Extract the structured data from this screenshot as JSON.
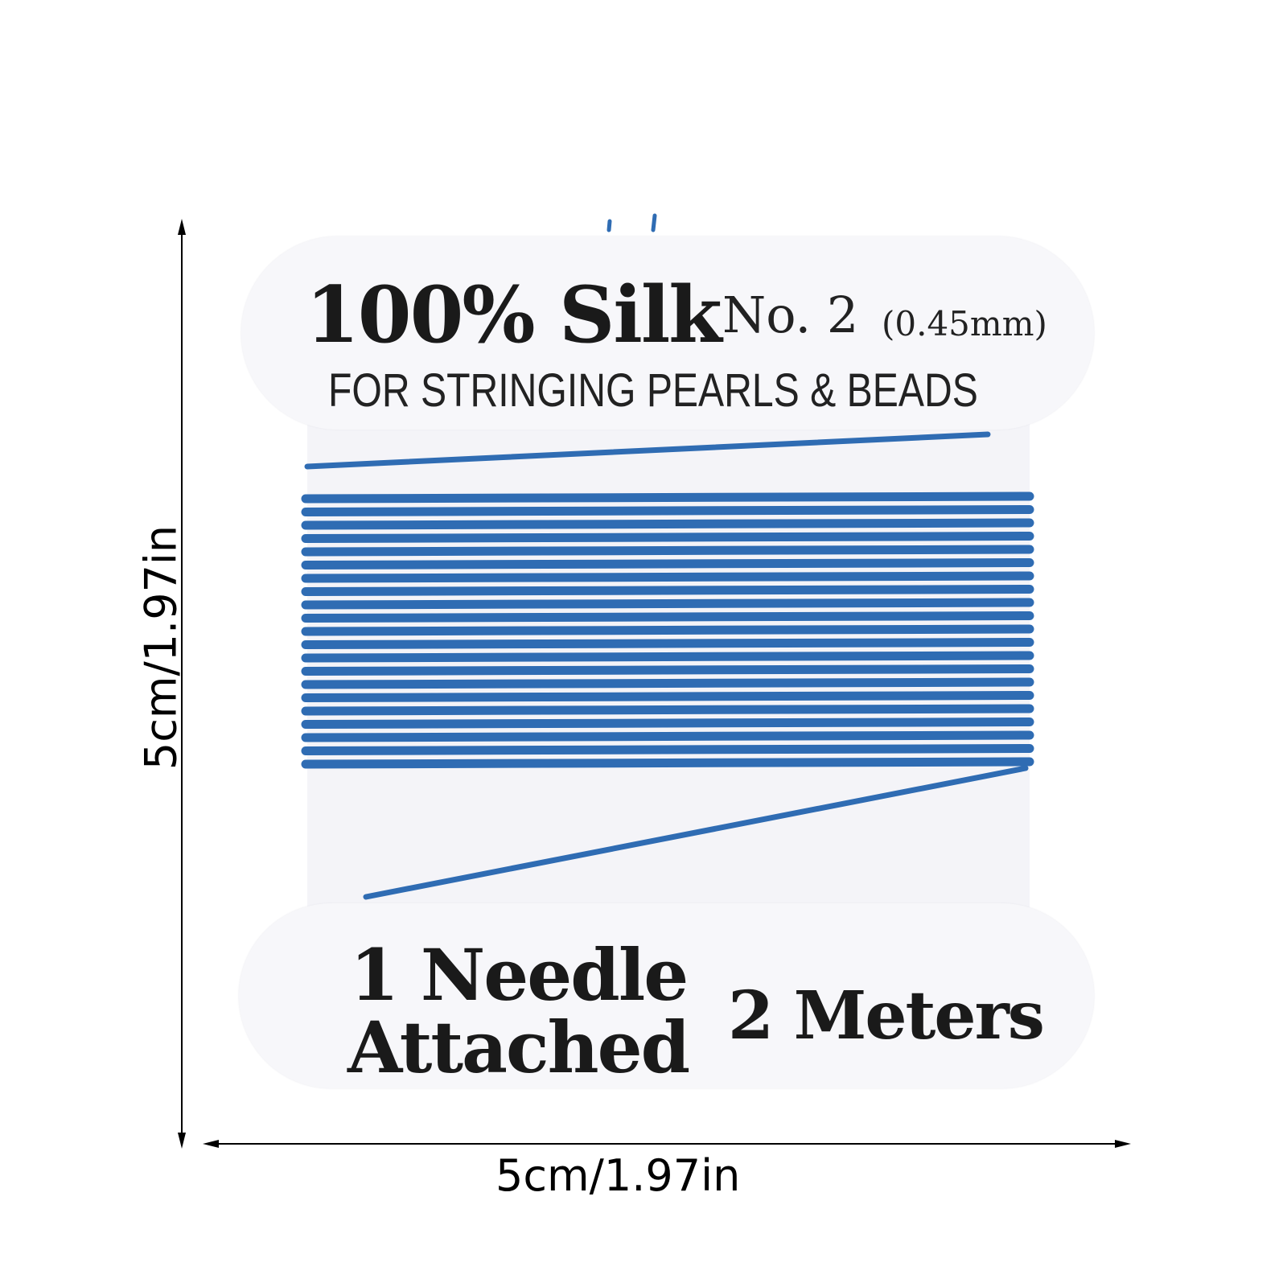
{
  "card": {
    "title": "100% Silk",
    "size_label": "No. 2",
    "diameter": "(0.45mm)",
    "subtitle": "FOR STRINGING PEARLS & BEADS",
    "needle_line1": "1 Needle",
    "needle_line2": "Attached",
    "length": "2 Meters"
  },
  "dimensions": {
    "height_label": "5cm/1.97in",
    "width_label": "5cm/1.97in"
  },
  "colors": {
    "thread": "#2f6cb3",
    "card": "#f6f6f9"
  }
}
